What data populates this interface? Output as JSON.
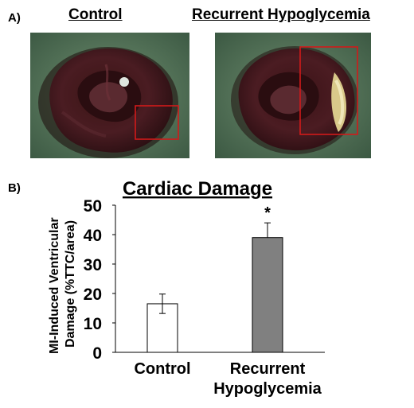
{
  "panel_a": {
    "label": "A)",
    "images": [
      {
        "title": "Control",
        "subject": "heart cross-section, Control",
        "highlight_color": "#d11a1a"
      },
      {
        "title": "Recurrent Hypoglycemia",
        "subject": "heart cross-section, Recurrent Hypoglycemia",
        "highlight_color": "#d11a1a"
      }
    ]
  },
  "panel_b": {
    "label": "B)"
  },
  "chart_data": {
    "type": "bar",
    "title": "Cardiac Damage",
    "xlabel": "",
    "ylabel_lines": [
      "MI-Induced Ventricular",
      "Damage (%TTC/area)"
    ],
    "categories": [
      [
        "Control"
      ],
      [
        "Recurrent",
        "Hypoglycemia"
      ]
    ],
    "values": [
      16.5,
      39
    ],
    "errors": [
      3.3,
      5
    ],
    "significance": [
      "",
      "*"
    ],
    "bar_colors": [
      "#ffffff",
      "#808080"
    ],
    "ylim": [
      0,
      50
    ],
    "yticks": [
      0,
      10,
      20,
      30,
      40,
      50
    ],
    "grid": false,
    "legend": "none"
  }
}
